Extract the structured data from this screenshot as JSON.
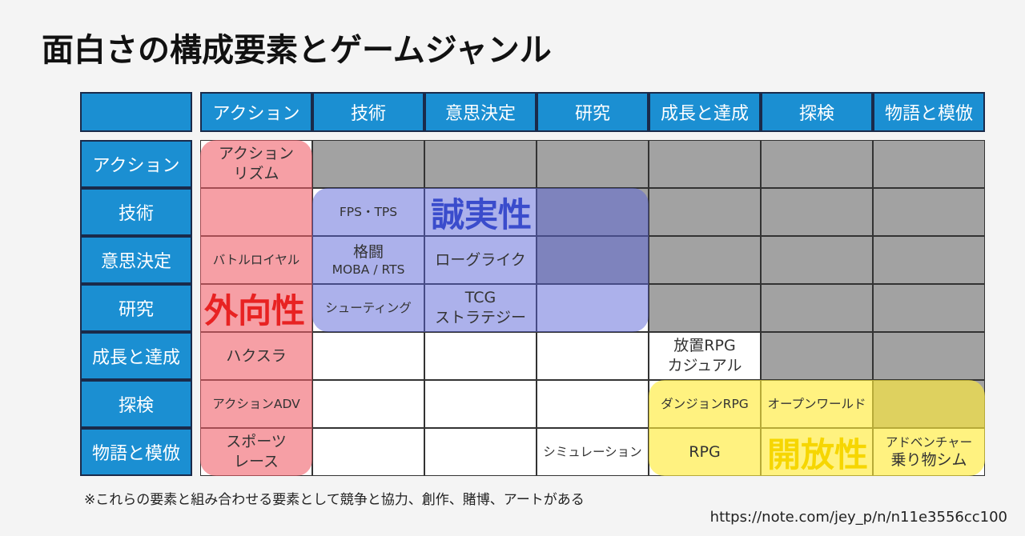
{
  "title": "面白さの構成要素とゲームジャンル",
  "columns": [
    "アクション",
    "技術",
    "意思決定",
    "研究",
    "成長と達成",
    "探検",
    "物語と模倣"
  ],
  "rows": [
    {
      "label": "アクション",
      "cells": [
        [
          "アクション",
          "リズム"
        ],
        null,
        null,
        null,
        null,
        null,
        null
      ]
    },
    {
      "label": "技術",
      "cells": [
        null,
        "FPS・TPS",
        null,
        null,
        null,
        null,
        null
      ]
    },
    {
      "label": "意思決定",
      "cells": [
        "バトルロイヤル",
        [
          "格闘",
          "MOBA / RTS"
        ],
        "ローグライク",
        null,
        null,
        null,
        null
      ]
    },
    {
      "label": "研究",
      "cells": [
        null,
        "シューティング",
        [
          "TCG",
          "ストラテジー"
        ],
        null,
        null,
        null,
        null
      ]
    },
    {
      "label": "成長と達成",
      "cells": [
        "ハクスラ",
        null,
        null,
        null,
        [
          "放置RPG",
          "カジュアル"
        ],
        null,
        null
      ]
    },
    {
      "label": "探検",
      "cells": [
        "アクションADV",
        null,
        null,
        null,
        "ダンジョンRPG",
        "オープンワールド",
        null
      ]
    },
    {
      "label": "物語と模倣",
      "cells": [
        [
          "スポーツ",
          "レース"
        ],
        null,
        null,
        "シミュレーション",
        "RPG",
        null,
        [
          "アドベンチャー",
          "乗り物シム"
        ]
      ]
    }
  ],
  "traits": [
    "外向性",
    "誠実性",
    "開放性"
  ],
  "footnote": "※これらの要素と組み合わせる要素として競争と協力、創作、賭博、アートがある",
  "url": "https://note.com/jey_p/n/n11e3556cc100"
}
